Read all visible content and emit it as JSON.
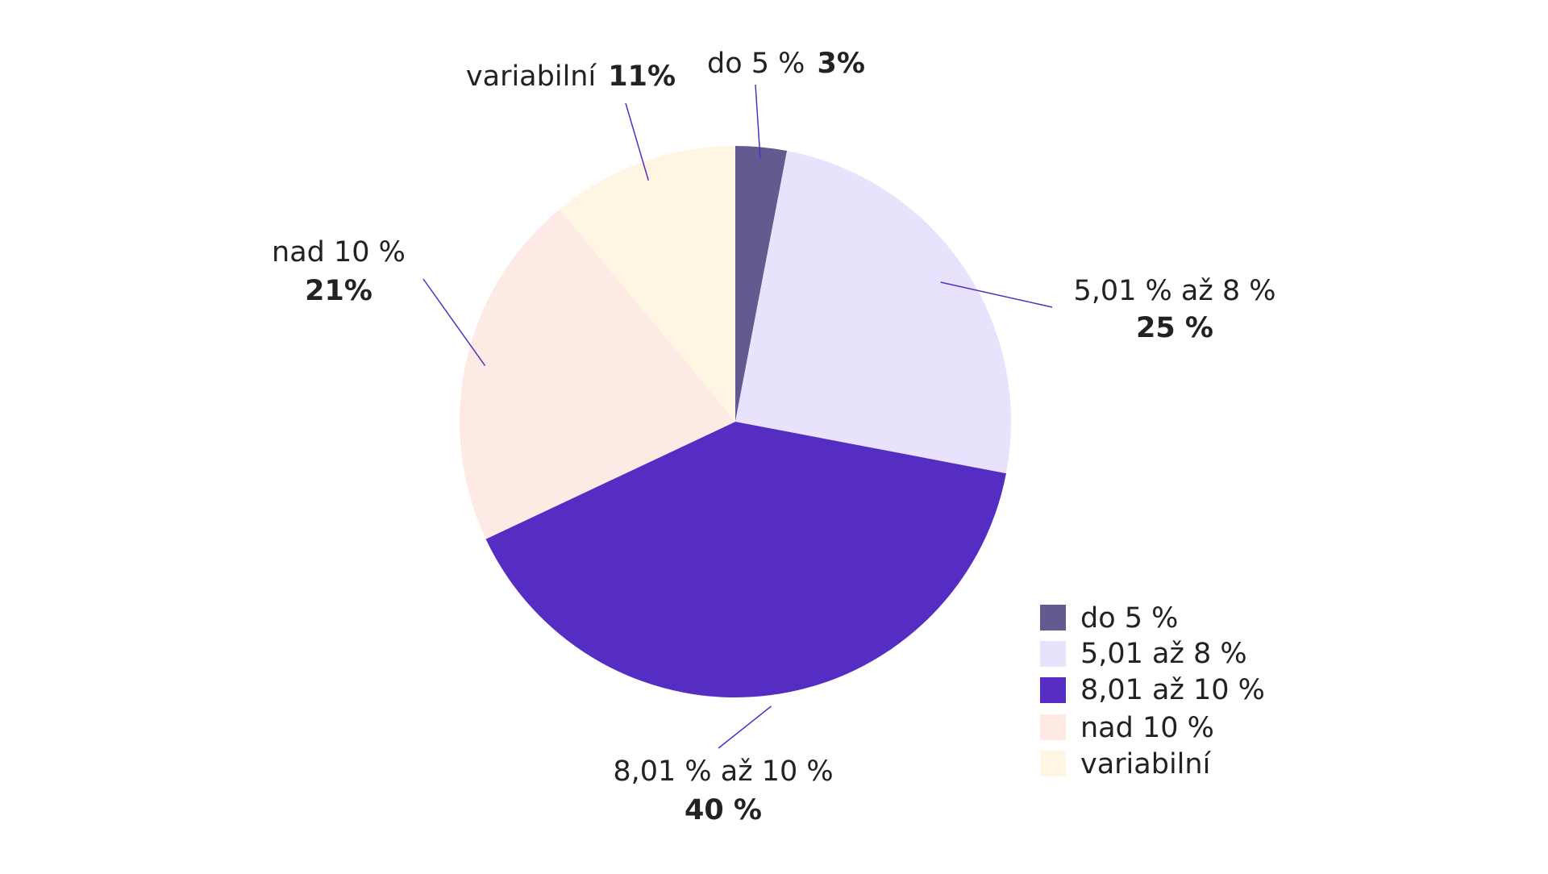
{
  "chart_data": {
    "type": "pie",
    "categories": [
      "do 5 %",
      "5,01 až 8 %",
      "8,01 až 10 %",
      "nad 10 %",
      "variabilní"
    ],
    "values": [
      3,
      25,
      40,
      21,
      11
    ],
    "colors": [
      "#615b8f",
      "#e9e2fd",
      "#562dc3",
      "#fdeae5",
      "#fef5e2"
    ],
    "slice_labels": [
      {
        "category": "do 5 %",
        "value": "3%"
      },
      {
        "category": "5,01 % až 8 %",
        "value": "25 %"
      },
      {
        "category": "8,01 % až 10 %",
        "value": "40 %"
      },
      {
        "category": "nad 10 %",
        "value": "21%"
      },
      {
        "category": "variabilní",
        "value": "11%"
      }
    ],
    "legend": {
      "position": "bottom-right",
      "items": [
        "do 5 %",
        "5,01 až 8 %",
        "8,01 až 10 %",
        "nad 10 %",
        "variabilní"
      ]
    },
    "leader_line_color": "#562dc3"
  }
}
